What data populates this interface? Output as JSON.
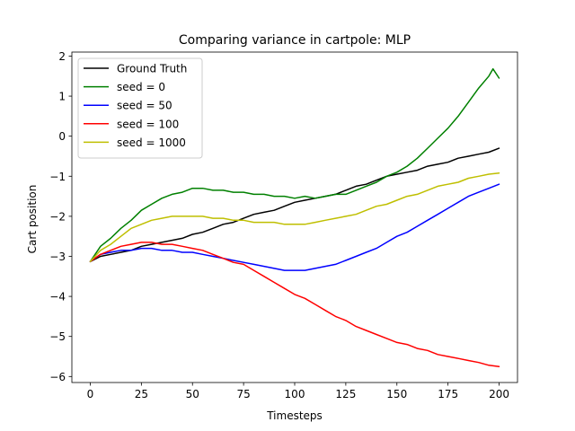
{
  "chart_data": {
    "type": "line",
    "title": "Comparing variance in cartpole: MLP",
    "xlabel": "Timesteps",
    "ylabel": "Cart position",
    "xlim": [
      -9,
      209
    ],
    "ylim": [
      -6.15,
      2.1
    ],
    "xticks": [
      0,
      25,
      50,
      75,
      100,
      125,
      150,
      175,
      200
    ],
    "yticks": [
      -6,
      -5,
      -4,
      -3,
      -2,
      -1,
      0,
      1,
      2
    ],
    "grid": false,
    "legend_position": "upper-left",
    "series": [
      {
        "name": "Ground Truth",
        "color": "#000000",
        "x": [
          0,
          5,
          10,
          15,
          20,
          25,
          30,
          35,
          40,
          45,
          50,
          55,
          60,
          65,
          70,
          75,
          80,
          85,
          90,
          95,
          100,
          105,
          110,
          115,
          120,
          125,
          130,
          135,
          140,
          145,
          150,
          155,
          160,
          165,
          170,
          175,
          180,
          185,
          190,
          195,
          200
        ],
        "y": [
          -3.13,
          -3.0,
          -2.95,
          -2.9,
          -2.85,
          -2.75,
          -2.7,
          -2.65,
          -2.6,
          -2.55,
          -2.45,
          -2.4,
          -2.3,
          -2.2,
          -2.15,
          -2.05,
          -1.95,
          -1.9,
          -1.85,
          -1.75,
          -1.65,
          -1.6,
          -1.55,
          -1.5,
          -1.45,
          -1.35,
          -1.25,
          -1.2,
          -1.1,
          -1.0,
          -0.95,
          -0.9,
          -0.85,
          -0.75,
          -0.7,
          -0.65,
          -0.55,
          -0.5,
          -0.45,
          -0.4,
          -0.3
        ]
      },
      {
        "name": "seed = 0",
        "color": "#008000",
        "x": [
          0,
          5,
          10,
          15,
          20,
          25,
          30,
          35,
          40,
          45,
          50,
          55,
          60,
          65,
          70,
          75,
          80,
          85,
          90,
          95,
          100,
          105,
          110,
          115,
          120,
          125,
          130,
          135,
          140,
          145,
          150,
          155,
          160,
          165,
          170,
          175,
          180,
          185,
          190,
          195,
          197,
          200
        ],
        "y": [
          -3.13,
          -2.75,
          -2.55,
          -2.3,
          -2.1,
          -1.85,
          -1.7,
          -1.55,
          -1.45,
          -1.4,
          -1.3,
          -1.3,
          -1.35,
          -1.35,
          -1.4,
          -1.4,
          -1.45,
          -1.45,
          -1.5,
          -1.5,
          -1.55,
          -1.5,
          -1.55,
          -1.5,
          -1.45,
          -1.45,
          -1.35,
          -1.25,
          -1.15,
          -1.0,
          -0.9,
          -0.75,
          -0.55,
          -0.3,
          -0.05,
          0.2,
          0.5,
          0.85,
          1.2,
          1.5,
          1.68,
          1.45
        ]
      },
      {
        "name": "seed = 50",
        "color": "#0000ff",
        "x": [
          0,
          5,
          10,
          15,
          20,
          25,
          30,
          35,
          40,
          45,
          50,
          55,
          60,
          65,
          70,
          75,
          80,
          85,
          90,
          95,
          100,
          105,
          110,
          115,
          120,
          125,
          130,
          135,
          140,
          145,
          150,
          155,
          160,
          165,
          170,
          175,
          180,
          185,
          190,
          195,
          200
        ],
        "y": [
          -3.13,
          -2.95,
          -2.9,
          -2.85,
          -2.85,
          -2.8,
          -2.8,
          -2.85,
          -2.85,
          -2.9,
          -2.9,
          -2.95,
          -3.0,
          -3.05,
          -3.1,
          -3.15,
          -3.2,
          -3.25,
          -3.3,
          -3.35,
          -3.35,
          -3.35,
          -3.3,
          -3.25,
          -3.2,
          -3.1,
          -3.0,
          -2.9,
          -2.8,
          -2.65,
          -2.5,
          -2.4,
          -2.25,
          -2.1,
          -1.95,
          -1.8,
          -1.65,
          -1.5,
          -1.4,
          -1.3,
          -1.2
        ]
      },
      {
        "name": "seed = 100",
        "color": "#ff0000",
        "x": [
          0,
          5,
          10,
          15,
          20,
          25,
          30,
          35,
          40,
          45,
          50,
          55,
          60,
          65,
          70,
          75,
          80,
          85,
          90,
          95,
          100,
          105,
          110,
          115,
          120,
          125,
          130,
          135,
          140,
          145,
          150,
          155,
          160,
          165,
          170,
          175,
          180,
          185,
          190,
          195,
          200
        ],
        "y": [
          -3.13,
          -2.95,
          -2.85,
          -2.75,
          -2.7,
          -2.65,
          -2.65,
          -2.7,
          -2.7,
          -2.75,
          -2.8,
          -2.85,
          -2.95,
          -3.05,
          -3.15,
          -3.2,
          -3.35,
          -3.5,
          -3.65,
          -3.8,
          -3.95,
          -4.05,
          -4.2,
          -4.35,
          -4.5,
          -4.6,
          -4.75,
          -4.85,
          -4.95,
          -5.05,
          -5.15,
          -5.2,
          -5.3,
          -5.35,
          -5.45,
          -5.5,
          -5.55,
          -5.6,
          -5.65,
          -5.72,
          -5.75
        ]
      },
      {
        "name": "seed = 1000",
        "color": "#bfbf00",
        "x": [
          0,
          5,
          10,
          15,
          20,
          25,
          30,
          35,
          40,
          45,
          50,
          55,
          60,
          65,
          70,
          75,
          80,
          85,
          90,
          95,
          100,
          105,
          110,
          115,
          120,
          125,
          130,
          135,
          140,
          145,
          150,
          155,
          160,
          165,
          170,
          175,
          180,
          185,
          190,
          195,
          200
        ],
        "y": [
          -3.13,
          -2.85,
          -2.7,
          -2.5,
          -2.3,
          -2.2,
          -2.1,
          -2.05,
          -2.0,
          -2.0,
          -2.0,
          -2.0,
          -2.05,
          -2.05,
          -2.1,
          -2.1,
          -2.15,
          -2.15,
          -2.15,
          -2.2,
          -2.2,
          -2.2,
          -2.15,
          -2.1,
          -2.05,
          -2.0,
          -1.95,
          -1.85,
          -1.75,
          -1.7,
          -1.6,
          -1.5,
          -1.45,
          -1.35,
          -1.25,
          -1.2,
          -1.15,
          -1.05,
          -1.0,
          -0.95,
          -0.92
        ]
      }
    ]
  }
}
